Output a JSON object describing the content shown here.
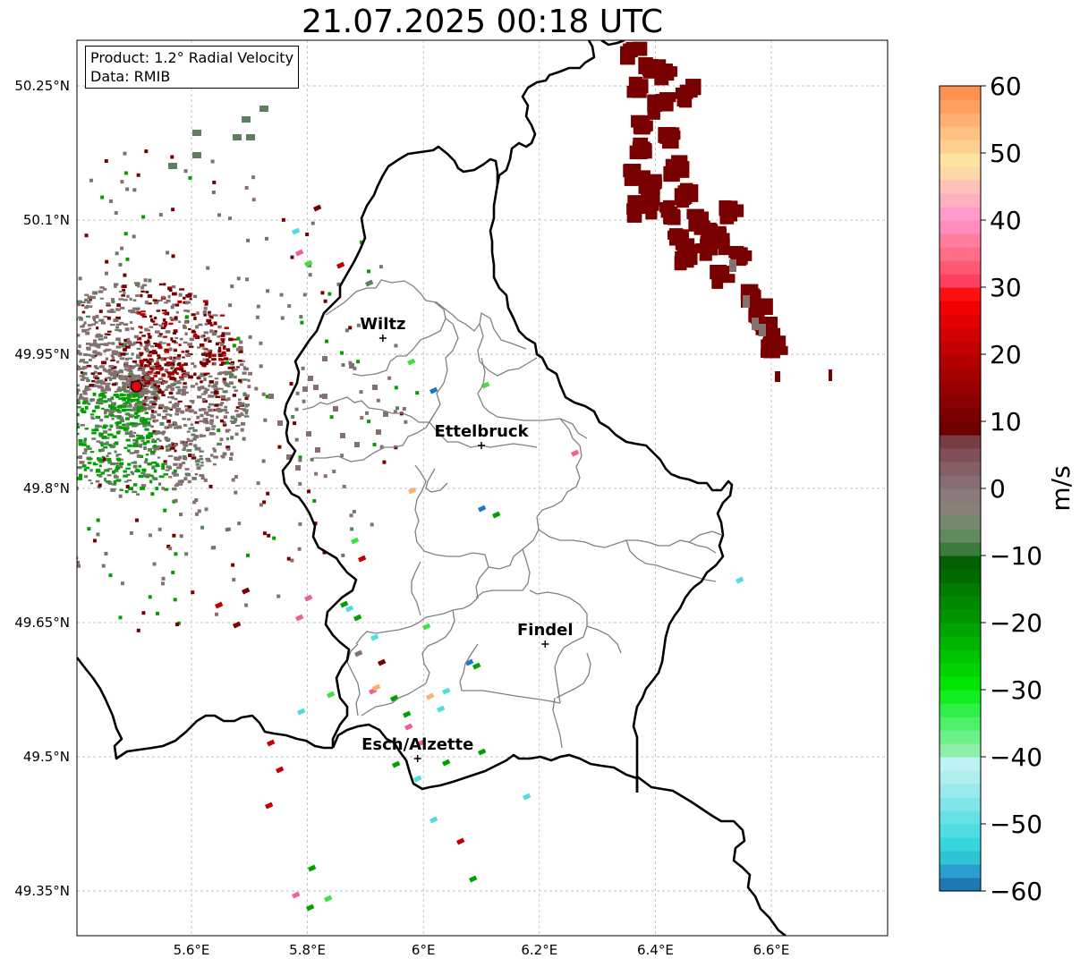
{
  "title": "21.07.2025 00:18 UTC",
  "info": {
    "product": "Product: 1.2° Radial Velocity",
    "data_source": "Data: RMIB"
  },
  "axes": {
    "lon_ticks": [
      "5.6°E",
      "5.8°E",
      "6°E",
      "6.2°E",
      "6.4°E",
      "6.6°E"
    ],
    "lat_ticks": [
      "50.25°N",
      "50.1°N",
      "49.95°N",
      "49.8°N",
      "49.65°N",
      "49.5°N",
      "49.35°N"
    ],
    "lon_values": [
      5.6,
      5.8,
      6.0,
      6.2,
      6.4,
      6.6
    ],
    "lat_values": [
      50.25,
      50.1,
      49.95,
      49.8,
      49.65,
      49.5,
      49.35
    ],
    "lon_range": [
      5.4,
      6.8
    ],
    "lat_range": [
      49.3,
      50.3
    ],
    "grid": true
  },
  "cities": [
    {
      "name": "Wiltz",
      "lon": 5.93,
      "lat": 49.968
    },
    {
      "name": "Ettelbruck",
      "lon": 6.1,
      "lat": 49.848
    },
    {
      "name": "Findel",
      "lon": 6.21,
      "lat": 49.626
    },
    {
      "name": "Esch/Alzette",
      "lon": 5.99,
      "lat": 49.498
    }
  ],
  "radar_site": {
    "lon": 5.505,
    "lat": 49.914,
    "color": "#e8000b"
  },
  "colorbar": {
    "label": "m/s",
    "ticks": [
      "60",
      "50",
      "40",
      "30",
      "20",
      "10",
      "0",
      "−10",
      "−20",
      "−30",
      "−40",
      "−50",
      "−60"
    ],
    "range": [
      -60,
      60
    ],
    "colors": [
      "#1f78b4",
      "#2a9fcf",
      "#2fc4d4",
      "#37d6dd",
      "#4ddde2",
      "#66e2e6",
      "#80e6e8",
      "#99eaeb",
      "#b0eeee",
      "#bff2f2",
      "#8ef0a8",
      "#6cf08a",
      "#4ef06a",
      "#2ef048",
      "#10ee20",
      "#00e600",
      "#00d400",
      "#00c400",
      "#00b400",
      "#00a400",
      "#009400",
      "#008800",
      "#007a00",
      "#006a00",
      "#005f00",
      "#3d7a3d",
      "#5e8a5e",
      "#738a6e",
      "#868278",
      "#8a7a7a",
      "#866d72",
      "#845f66",
      "#80505a",
      "#7a3c44",
      "#6e0000",
      "#7a0000",
      "#880000",
      "#960000",
      "#a40000",
      "#b20000",
      "#c20000",
      "#d20000",
      "#e20000",
      "#f00000",
      "#ff1010",
      "#ff4060",
      "#ff5a72",
      "#ff6e88",
      "#ff7ea0",
      "#ff8cba",
      "#ff9ccc",
      "#ffb0c0",
      "#ffc2b8",
      "#ffd8a8",
      "#ffe4a0",
      "#ffd090",
      "#ffc080",
      "#ffb070",
      "#ffa060",
      "#ff9050"
    ]
  },
  "echo_colors": {
    "dark_red": "#780000",
    "red": "#c00000",
    "gray": "#857070",
    "green_gray": "#5f8060",
    "green": "#00a000",
    "light_green": "#40e040",
    "cyan": "#50dce0",
    "pink": "#f06090",
    "blue": "#1f78c4",
    "orange": "#ffb070"
  }
}
